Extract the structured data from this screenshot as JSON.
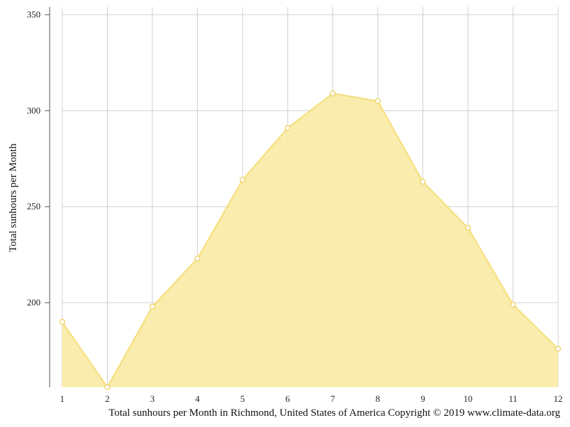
{
  "chart_data": {
    "type": "area",
    "x": [
      1,
      2,
      3,
      4,
      5,
      6,
      7,
      8,
      9,
      10,
      11,
      12
    ],
    "x_tick_labels": [
      "1",
      "2",
      "3",
      "4",
      "5",
      "6",
      "7",
      "8",
      "9",
      "10",
      "11",
      "12"
    ],
    "values": [
      190,
      156,
      198,
      223,
      264,
      291,
      309,
      305,
      263,
      239,
      199,
      176
    ],
    "ylabel": "Total sunhours per Month",
    "xlabel": "",
    "ylim": [
      156,
      354
    ],
    "y_ticks": [
      200,
      250,
      300,
      350
    ],
    "grid": true,
    "colors": {
      "fill": "#f9eba8",
      "line": "#f5de7a",
      "marker_stroke": "#f0d060",
      "grid": "#d0d0d0"
    }
  },
  "caption": "Total sunhours per Month in Richmond, United States of America Copyright © 2019 www.climate-data.org"
}
